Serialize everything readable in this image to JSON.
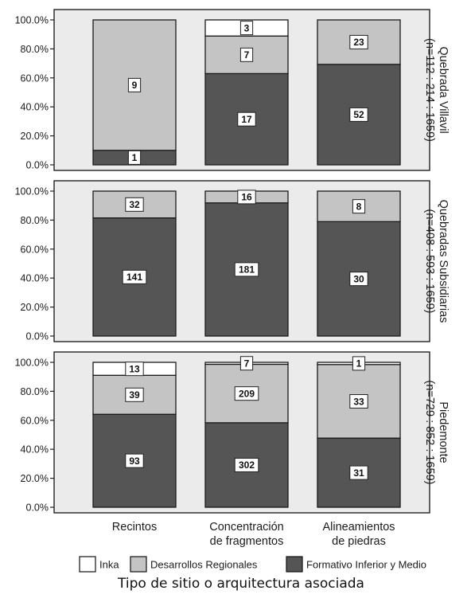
{
  "chart_data": {
    "type": "bar",
    "stacked": true,
    "normalized": true,
    "categories": [
      "Recintos",
      "Concentración de fragmentos",
      "Alineamientos de piedras"
    ],
    "category_lines": [
      [
        "Recintos"
      ],
      [
        "Concentración",
        "de fragmentos"
      ],
      [
        "Alineamientos",
        "de piedras"
      ]
    ],
    "y_ticks": [
      "0.0%",
      "20.0%",
      "40.0%",
      "60.0%",
      "80.0%",
      "100.0%"
    ],
    "ylim": [
      0,
      100
    ],
    "xlabel": "Tipo de sitio o arquitectura asociada",
    "legend": {
      "position": "bottom",
      "entries": [
        {
          "name": "Inka",
          "color": "#ffffff"
        },
        {
          "name": "Desarrollos Regionales",
          "color": "#c4c4c4"
        },
        {
          "name": "Formativo Inferior y Medio",
          "color": "#555555"
        }
      ]
    },
    "panels": [
      {
        "label_lines": [
          "Quebrada Villavil",
          "(n=112 : 214 : 1659)"
        ],
        "series": [
          {
            "name": "Formativo Inferior y Medio",
            "values": [
              1,
              17,
              52
            ]
          },
          {
            "name": "Desarrollos Regionales",
            "values": [
              9,
              7,
              23
            ]
          },
          {
            "name": "Inka",
            "values": [
              0,
              3,
              0
            ]
          }
        ]
      },
      {
        "label_lines": [
          "Quebradas Subsidiarias",
          "(n=408 : 593 : 1659)"
        ],
        "series": [
          {
            "name": "Formativo Inferior y Medio",
            "values": [
              141,
              181,
              30
            ]
          },
          {
            "name": "Desarrollos Regionales",
            "values": [
              32,
              16,
              8
            ]
          },
          {
            "name": "Inka",
            "values": [
              0,
              0,
              0
            ]
          }
        ]
      },
      {
        "label_lines": [
          "Piedemonte",
          "(n=729 : 852 : 1659)"
        ],
        "series": [
          {
            "name": "Formativo Inferior y Medio",
            "values": [
              93,
              302,
              31
            ]
          },
          {
            "name": "Desarrollos Regionales",
            "values": [
              39,
              209,
              33
            ]
          },
          {
            "name": "Inka",
            "values": [
              13,
              7,
              1
            ]
          }
        ]
      }
    ]
  }
}
